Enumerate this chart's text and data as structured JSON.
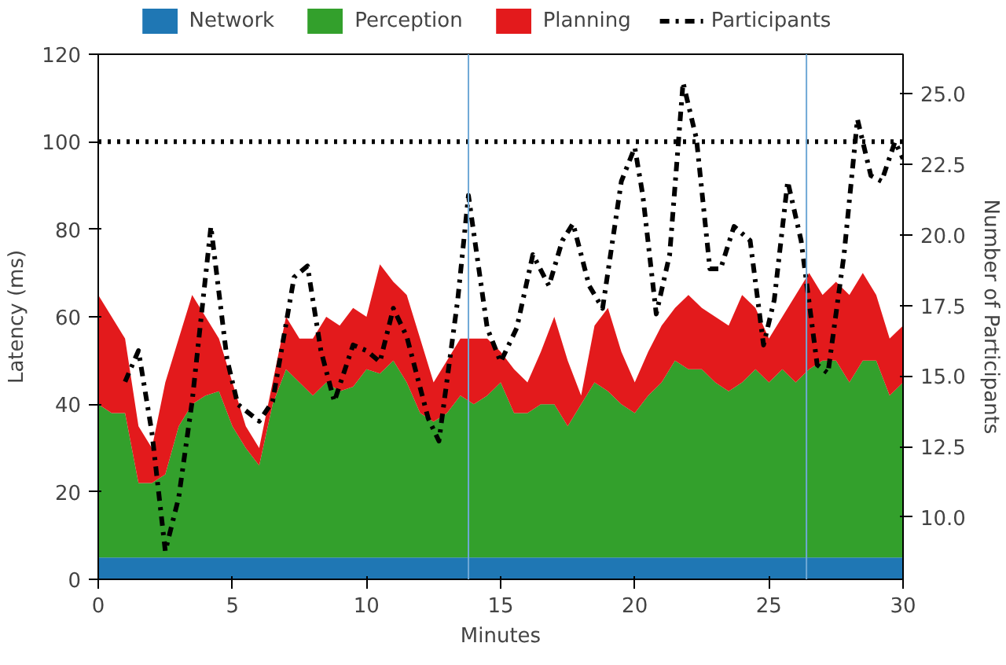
{
  "chart_data": {
    "type": "area",
    "stacked": true,
    "xlabel": "Minutes",
    "ylabel": "Latency (ms)",
    "y2label": "Number of Participants",
    "x": [
      0,
      0.5,
      1,
      1.5,
      2,
      2.5,
      3,
      3.5,
      4,
      4.5,
      5,
      5.5,
      6,
      6.5,
      7,
      7.5,
      8,
      8.5,
      9,
      9.5,
      10,
      10.5,
      11,
      11.5,
      12,
      12.5,
      13,
      13.5,
      14,
      14.5,
      15,
      15.5,
      16,
      16.5,
      17,
      17.5,
      18,
      18.5,
      19,
      19.5,
      20,
      20.5,
      21,
      21.5,
      22,
      22.5,
      23,
      23.5,
      24,
      24.5,
      25,
      25.5,
      26,
      26.5,
      27,
      27.5,
      28,
      28.5,
      29,
      29.5,
      30
    ],
    "series": [
      {
        "name": "Network",
        "color": "#1f77b4",
        "values": [
          5,
          5,
          5,
          5,
          5,
          5,
          5,
          5,
          5,
          5,
          5,
          5,
          5,
          5,
          5,
          5,
          5,
          5,
          5,
          5,
          5,
          5,
          5,
          5,
          5,
          5,
          5,
          5,
          5,
          5,
          5,
          5,
          5,
          5,
          5,
          5,
          5,
          5,
          5,
          5,
          5,
          5,
          5,
          5,
          5,
          5,
          5,
          5,
          5,
          5,
          5,
          5,
          5,
          5,
          5,
          5,
          5,
          5,
          5,
          5,
          5
        ]
      },
      {
        "name": "Perception",
        "color": "#33a02c",
        "values": [
          35,
          33,
          33,
          17,
          17,
          19,
          30,
          35,
          37,
          38,
          30,
          25,
          21,
          35,
          43,
          40,
          37,
          40,
          38,
          39,
          43,
          42,
          45,
          40,
          33,
          31,
          33,
          37,
          35,
          37,
          40,
          33,
          33,
          35,
          35,
          30,
          35,
          40,
          38,
          35,
          33,
          37,
          40,
          45,
          43,
          43,
          40,
          38,
          40,
          43,
          40,
          43,
          40,
          43,
          45,
          45,
          40,
          45,
          45,
          37,
          40
        ]
      },
      {
        "name": "Planning",
        "color": "#e31a1c",
        "values": [
          25,
          22,
          17,
          13,
          8,
          21,
          20,
          25,
          18,
          12,
          10,
          5,
          4,
          5,
          12,
          10,
          13,
          15,
          15,
          18,
          12,
          25,
          18,
          20,
          17,
          9,
          12,
          13,
          15,
          13,
          7,
          10,
          7,
          12,
          20,
          15,
          2,
          13,
          19,
          12,
          7,
          10,
          13,
          12,
          17,
          14,
          15,
          15,
          20,
          14,
          10,
          12,
          20,
          22,
          15,
          18,
          20,
          20,
          15,
          13,
          13
        ]
      },
      {
        "name": "Participants",
        "type": "line",
        "axis": "y2",
        "color": "#000000",
        "line_style": "dashdot",
        "x": [
          1,
          1.5,
          2,
          2.5,
          3,
          3.5,
          4.2,
          4.8,
          5.2,
          6,
          6.5,
          7.3,
          7.8,
          8.3,
          8.8,
          9.5,
          10,
          10.5,
          11,
          11.5,
          12.3,
          12.7,
          13.4,
          13.8,
          14.5,
          15,
          15.6,
          16.2,
          16.8,
          17.3,
          17.7,
          18.3,
          18.8,
          19.5,
          20,
          20.3,
          20.8,
          21.3,
          21.8,
          22.3,
          22.8,
          23.2,
          23.7,
          24.3,
          24.8,
          25.2,
          25.7,
          26.2,
          26.8,
          27.2,
          27.8,
          28.3,
          28.8,
          29.2,
          29.7,
          30
        ],
        "values": [
          14.8,
          15.9,
          13.0,
          8.8,
          10.7,
          14.1,
          20.3,
          15.6,
          14.0,
          13.4,
          14.1,
          18.5,
          18.9,
          15.9,
          14.1,
          16.1,
          15.9,
          15.5,
          17.4,
          16.4,
          13.5,
          12.7,
          17.7,
          21.4,
          16.7,
          15.5,
          16.7,
          19.3,
          18.2,
          19.8,
          20.4,
          18.2,
          17.4,
          21.9,
          23.1,
          21.4,
          17.2,
          19.3,
          25.4,
          23.4,
          18.8,
          18.8,
          20.3,
          19.8,
          16.1,
          17.7,
          21.9,
          19.8,
          15.4,
          15.1,
          19.3,
          24.1,
          22.1,
          21.9,
          23.3,
          22.7
        ]
      }
    ],
    "xlim": [
      0,
      30
    ],
    "xticks": [
      0,
      5,
      10,
      15,
      20,
      25,
      30
    ],
    "ylim": [
      0,
      120
    ],
    "yticks": [
      0,
      20,
      40,
      60,
      80,
      100,
      120
    ],
    "y2lim": [
      7.8,
      26.4
    ],
    "y2ticks": [
      {
        "value": 10,
        "label": "10.0"
      },
      12.5,
      {
        "value": 15,
        "label": "15.0"
      },
      17.5,
      {
        "value": 20,
        "label": "20.0"
      },
      22.5,
      {
        "value": 25,
        "label": "25.0"
      }
    ],
    "ref_lines": [
      {
        "axis": "y",
        "value": 100,
        "color": "#000000",
        "line_style": "dotted"
      },
      {
        "axis": "x",
        "value": 13.8,
        "color": "#6fa8d6",
        "line_style": "solid"
      },
      {
        "axis": "x",
        "value": 26.4,
        "color": "#6fa8d6",
        "line_style": "solid"
      }
    ],
    "grid": false,
    "legend": "top"
  }
}
